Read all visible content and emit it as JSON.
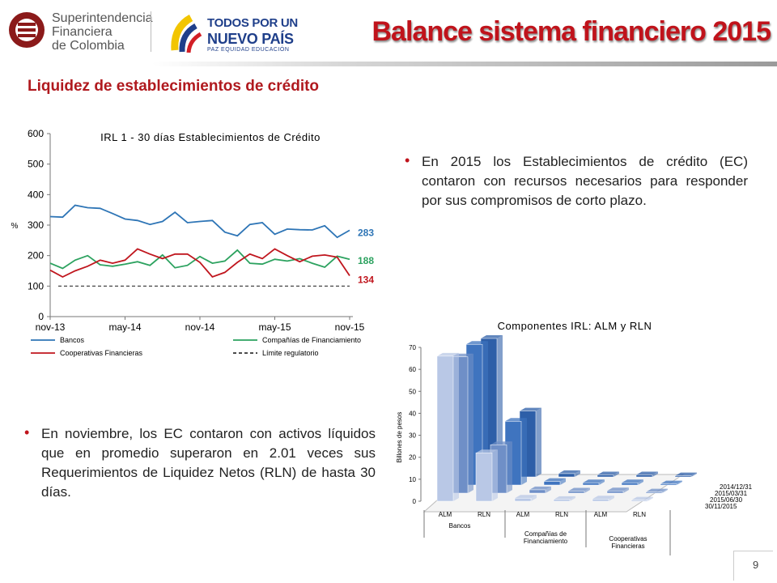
{
  "header": {
    "logo_left": {
      "lines": [
        "Superintendencia",
        "Financiera",
        "de Colombia"
      ]
    },
    "logo_right": {
      "line1": "TODOS POR UN",
      "line2": "NUEVO PAÍS",
      "line3": "PAZ  EQUIDAD  EDUCACIÓN"
    },
    "title": "Balance sistema financiero 2015"
  },
  "section_title": "Liquidez de establecimientos de crédito",
  "bullets": [
    "En 2015 los Establecimientos de crédito (EC) contaron con recursos necesarios para responder por sus compromisos de corto plazo.",
    "En noviembre, los EC contaron con activos líquidos que en promedio superaron en 2.01 veces sus Requerimientos de Liquidez Netos (RLN) de hasta 30 días."
  ],
  "page_number": "9",
  "chart_data": [
    {
      "type": "line",
      "title": "IRL 1 - 30 días Establecimientos de Crédito",
      "ylabel": "%",
      "ylim": [
        0,
        600
      ],
      "yticks": [
        "0",
        "100",
        "200",
        "300",
        "400",
        "500",
        "600"
      ],
      "xticks": [
        "nov-13",
        "may-14",
        "nov-14",
        "may-15",
        "nov-15"
      ],
      "x": [
        "nov-13",
        "dic-13",
        "ene-14",
        "feb-14",
        "mar-14",
        "abr-14",
        "may-14",
        "jun-14",
        "jul-14",
        "ago-14",
        "sep-14",
        "oct-14",
        "nov-14",
        "dic-14",
        "ene-15",
        "feb-15",
        "mar-15",
        "abr-15",
        "may-15",
        "jun-15",
        "jul-15",
        "ago-15",
        "sep-15",
        "oct-15",
        "nov-15"
      ],
      "series": [
        {
          "name": "Bancos",
          "color": "#2e75b6",
          "end_label": "283",
          "values": [
            328,
            326,
            365,
            357,
            355,
            338,
            320,
            315,
            302,
            312,
            342,
            308,
            312,
            315,
            277,
            265,
            302,
            308,
            270,
            287,
            285,
            284,
            298,
            260,
            283
          ]
        },
        {
          "name": "Compañías de Financiamiento",
          "color": "#2ca25f",
          "end_label": "188",
          "values": [
            175,
            158,
            185,
            200,
            170,
            165,
            172,
            180,
            168,
            202,
            160,
            168,
            197,
            175,
            182,
            218,
            175,
            172,
            188,
            182,
            190,
            175,
            162,
            198,
            188
          ]
        },
        {
          "name": "Cooperativas Financieras",
          "color": "#c0161e",
          "end_label": "134",
          "values": [
            152,
            130,
            150,
            165,
            185,
            175,
            185,
            222,
            205,
            190,
            205,
            205,
            178,
            130,
            145,
            178,
            205,
            190,
            222,
            200,
            180,
            198,
            202,
            195,
            134
          ]
        },
        {
          "name": "Límite regulatorio",
          "color": "#333333",
          "dashed": true,
          "values": [
            100,
            100,
            100,
            100,
            100,
            100,
            100,
            100,
            100,
            100,
            100,
            100,
            100,
            100,
            100,
            100,
            100,
            100,
            100,
            100,
            100,
            100,
            100,
            100,
            100
          ]
        }
      ],
      "legend": "bottom"
    },
    {
      "type": "bar",
      "title": "Componentes IRL: ALM y RLN",
      "ylabel": "Billones de pesos",
      "ylim": [
        0,
        70
      ],
      "yticks": [
        "0",
        "10",
        "20",
        "30",
        "40",
        "50",
        "60",
        "70"
      ],
      "categories": [
        "ALM",
        "RLN",
        "ALM",
        "RLN",
        "ALM",
        "RLN"
      ],
      "groups": [
        "Bancos",
        "Compañías de Financiamiento",
        "Cooperativas Financieras"
      ],
      "series": [
        {
          "name": "2014/12/31",
          "color": "#2e5fa8",
          "values": [
            63,
            30,
            1.5,
            0.9,
            0.9,
            0.5
          ]
        },
        {
          "name": "2015/03/31",
          "color": "#3f74bf",
          "values": [
            64,
            29,
            1.6,
            1.0,
            1.0,
            0.5
          ]
        },
        {
          "name": "2015/06/30",
          "color": "#6f8fc7",
          "values": [
            62,
            22,
            1.5,
            0.9,
            1.0,
            0.5
          ]
        },
        {
          "name": "30/11/2015",
          "color": "#b9c8e6",
          "values": [
            66,
            22,
            1.4,
            0.8,
            1.0,
            0.5
          ]
        }
      ],
      "legend": "right"
    }
  ]
}
